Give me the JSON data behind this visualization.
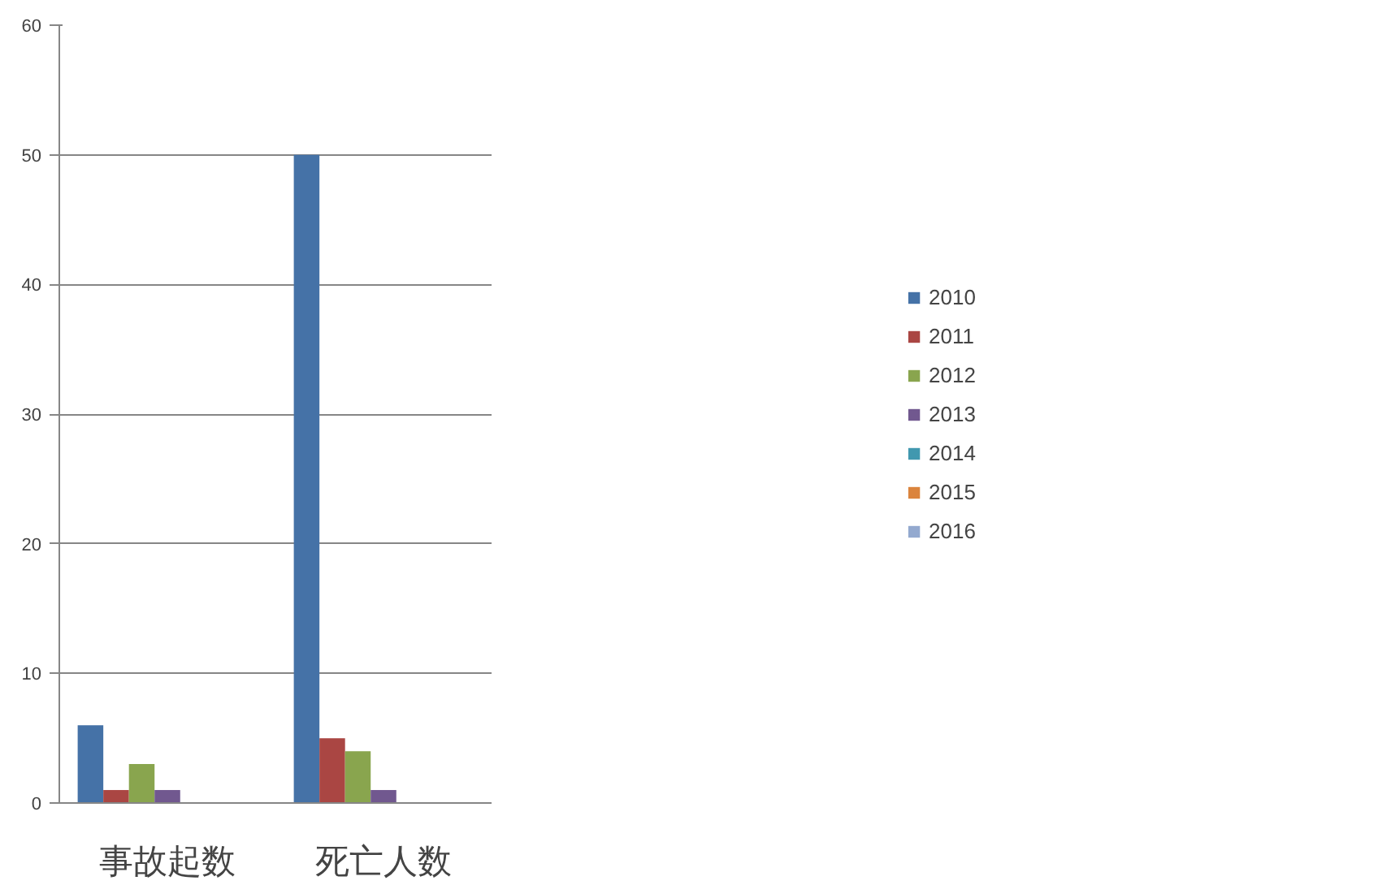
{
  "chart_data": {
    "type": "bar",
    "categories": [
      "事故起数",
      "死亡人数"
    ],
    "series": [
      {
        "name": "2010",
        "color": "#4572a7",
        "values": [
          6,
          50
        ]
      },
      {
        "name": "2011",
        "color": "#aa4643",
        "values": [
          1,
          5
        ]
      },
      {
        "name": "2012",
        "color": "#89a54e",
        "values": [
          3,
          4
        ]
      },
      {
        "name": "2013",
        "color": "#71588f",
        "values": [
          1,
          1
        ]
      },
      {
        "name": "2014",
        "color": "#4198af",
        "values": [
          0,
          0
        ]
      },
      {
        "name": "2015",
        "color": "#db843d",
        "values": [
          0,
          0
        ]
      },
      {
        "name": "2016",
        "color": "#93a9cf",
        "values": [
          0,
          0
        ]
      }
    ],
    "ylim": [
      0,
      60
    ],
    "yticks": [
      0,
      10,
      20,
      30,
      40,
      50,
      60
    ],
    "grid": "y",
    "legend": "right"
  }
}
